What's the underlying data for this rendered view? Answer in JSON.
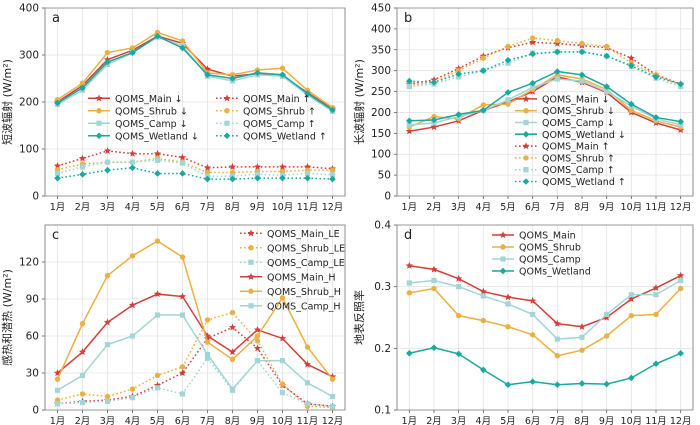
{
  "colors": {
    "main": "#d33f3a",
    "shrub": "#eab043",
    "camp": "#a2d6d6",
    "wetland": "#1aa9a0"
  },
  "months": [
    "1月",
    "2月",
    "3月",
    "4月",
    "5月",
    "6月",
    "7月",
    "8月",
    "9月",
    "10月",
    "11月",
    "12月"
  ],
  "chart_data": [
    {
      "panel": "a",
      "type": "line",
      "title": "",
      "panel_label": "a",
      "ylabel": "短波辐射 (W/m²)",
      "ylim": [
        0,
        400
      ],
      "yticks": [
        0,
        100,
        200,
        300,
        400
      ],
      "grid": true,
      "legend_placement": "center",
      "legend_columns": 2,
      "series": [
        {
          "name": "QOMS_Main ↓",
          "color": "main",
          "style": "solid",
          "marker": "star",
          "values": [
            200,
            235,
            290,
            310,
            340,
            325,
            270,
            255,
            260,
            255,
            220,
            185
          ]
        },
        {
          "name": "QOMS_Shrub ↓",
          "color": "shrub",
          "style": "solid",
          "marker": "circle",
          "values": [
            205,
            240,
            305,
            315,
            348,
            330,
            262,
            258,
            268,
            272,
            225,
            188
          ]
        },
        {
          "name": "QOMS_Camp ↓",
          "color": "camp",
          "style": "solid",
          "marker": "square",
          "values": [
            195,
            225,
            280,
            305,
            338,
            320,
            255,
            245,
            258,
            255,
            215,
            180
          ]
        },
        {
          "name": "QOMS_Wetland ↓",
          "color": "wetland",
          "style": "solid",
          "marker": "diamond",
          "values": [
            198,
            230,
            285,
            305,
            340,
            315,
            258,
            250,
            262,
            258,
            218,
            183
          ]
        },
        {
          "name": "QOMS_Main ↑",
          "color": "main",
          "style": "dotted",
          "marker": "star",
          "values": [
            64,
            80,
            96,
            90,
            90,
            82,
            60,
            62,
            62,
            62,
            62,
            58
          ]
        },
        {
          "name": "QOMS_Shrub ↑",
          "color": "shrub",
          "style": "dotted",
          "marker": "circle",
          "values": [
            56,
            68,
            72,
            72,
            80,
            72,
            50,
            50,
            52,
            52,
            55,
            55
          ]
        },
        {
          "name": "QOMS_Camp ↑",
          "color": "camp",
          "style": "dotted",
          "marker": "square",
          "values": [
            48,
            62,
            72,
            72,
            76,
            70,
            42,
            42,
            46,
            44,
            48,
            45
          ]
        },
        {
          "name": "QOMS_Wetland ↑",
          "color": "wetland",
          "style": "dotted",
          "marker": "diamond",
          "values": [
            38,
            46,
            55,
            60,
            48,
            48,
            36,
            36,
            38,
            38,
            38,
            36
          ]
        }
      ]
    },
    {
      "panel": "b",
      "type": "line",
      "title": "",
      "panel_label": "b",
      "ylabel": "长波辐射 (W/m²)",
      "ylim": [
        0,
        450
      ],
      "yticks": [
        0,
        50,
        100,
        150,
        200,
        250,
        300,
        350,
        400,
        450
      ],
      "grid": true,
      "legend_placement": "bottom-center",
      "legend_columns": 1,
      "series": [
        {
          "name": "QOMS_Main ↓",
          "color": "main",
          "style": "solid",
          "marker": "star",
          "values": [
            155,
            165,
            180,
            205,
            225,
            250,
            285,
            272,
            248,
            200,
            175,
            158
          ]
        },
        {
          "name": "QOMS_Shrub ↓",
          "color": "shrub",
          "style": "solid",
          "marker": "circle",
          "values": [
            165,
            190,
            185,
            218,
            220,
            255,
            290,
            280,
            255,
            205,
            180,
            165
          ]
        },
        {
          "name": "QOMS_Camp ↓",
          "color": "camp",
          "style": "solid",
          "marker": "square",
          "values": [
            170,
            175,
            190,
            205,
            230,
            260,
            280,
            275,
            250,
            215,
            185,
            170
          ]
        },
        {
          "name": "QOMS_Wetland ↓",
          "color": "wetland",
          "style": "solid",
          "marker": "diamond",
          "values": [
            180,
            182,
            195,
            205,
            248,
            270,
            298,
            290,
            262,
            220,
            188,
            178
          ]
        },
        {
          "name": "QOMS_Main ↑",
          "color": "main",
          "style": "dotted",
          "marker": "star",
          "values": [
            268,
            278,
            305,
            335,
            355,
            368,
            365,
            360,
            355,
            330,
            290,
            268
          ]
        },
        {
          "name": "QOMS_Shrub ↑",
          "color": "shrub",
          "style": "dotted",
          "marker": "circle",
          "values": [
            265,
            272,
            300,
            330,
            358,
            378,
            372,
            365,
            358,
            318,
            290,
            265
          ]
        },
        {
          "name": "QOMS_Camp ↑",
          "color": "camp",
          "style": "dotted",
          "marker": "square",
          "values": [
            262,
            268,
            285,
            300,
            318,
            342,
            345,
            345,
            335,
            310,
            282,
            262
          ]
        },
        {
          "name": "QOMS_Wetland ↑",
          "color": "wetland",
          "style": "dotted",
          "marker": "diamond",
          "values": [
            275,
            272,
            292,
            300,
            325,
            340,
            345,
            345,
            335,
            312,
            285,
            268
          ]
        }
      ]
    },
    {
      "panel": "c",
      "type": "line",
      "title": "",
      "panel_label": "c",
      "ylabel": "感热和潜热 (W/m²)",
      "ylim": [
        0,
        150
      ],
      "yticks": [
        0,
        30,
        60,
        90,
        120
      ],
      "grid": true,
      "legend_placement": "top-right",
      "legend_columns": 1,
      "series": [
        {
          "name": "QOMS_Main_LE",
          "color": "main",
          "style": "dotted",
          "marker": "star",
          "values": [
            5,
            7,
            8,
            11,
            20,
            30,
            58,
            67,
            50,
            20,
            5,
            3
          ]
        },
        {
          "name": "QOMS_Shrub_LE",
          "color": "shrub",
          "style": "dotted",
          "marker": "circle",
          "values": [
            8,
            13,
            11,
            17,
            28,
            35,
            73,
            79,
            56,
            21,
            3,
            2
          ]
        },
        {
          "name": "QOMS_Camp_LE",
          "color": "camp",
          "style": "dotted",
          "marker": "square",
          "values": [
            5,
            6,
            7,
            10,
            18,
            13,
            42,
            16,
            40,
            14,
            5,
            3
          ]
        },
        {
          "name": "QOMS_Main_H",
          "color": "main",
          "style": "solid",
          "marker": "star",
          "values": [
            30,
            47,
            71,
            85,
            94,
            92,
            60,
            47,
            65,
            58,
            37,
            27
          ]
        },
        {
          "name": "QOMS_Shrub_H",
          "color": "shrub",
          "style": "solid",
          "marker": "circle",
          "values": [
            25,
            70,
            109,
            125,
            137,
            124,
            55,
            41,
            60,
            91,
            51,
            25
          ]
        },
        {
          "name": "QOMS_Camp_H",
          "color": "camp",
          "style": "solid",
          "marker": "square",
          "values": [
            16,
            28,
            53,
            60,
            77,
            77,
            45,
            17,
            40,
            40,
            22,
            11
          ]
        }
      ]
    },
    {
      "panel": "d",
      "type": "line",
      "title": "",
      "panel_label": "d",
      "ylabel": "地表反照率",
      "ylim": [
        0.1,
        0.4
      ],
      "yticks": [
        0.1,
        0.2,
        0.3,
        0.4
      ],
      "grid": true,
      "legend_placement": "top-left",
      "legend_columns": 1,
      "series": [
        {
          "name": "QOMS_Main",
          "color": "main",
          "style": "solid",
          "marker": "star",
          "values": [
            0.334,
            0.328,
            0.313,
            0.292,
            0.283,
            0.277,
            0.24,
            0.235,
            0.25,
            0.28,
            0.298,
            0.318
          ]
        },
        {
          "name": "QOMS_Shrub",
          "color": "shrub",
          "style": "solid",
          "marker": "circle",
          "values": [
            0.29,
            0.297,
            0.253,
            0.245,
            0.235,
            0.222,
            0.188,
            0.197,
            0.22,
            0.253,
            0.255,
            0.297
          ]
        },
        {
          "name": "QOMS_Camp",
          "color": "camp",
          "style": "solid",
          "marker": "square",
          "values": [
            0.306,
            0.31,
            0.3,
            0.285,
            0.272,
            0.255,
            0.215,
            0.218,
            0.255,
            0.287,
            0.287,
            0.31
          ]
        },
        {
          "name": "QOMs_Wetland",
          "color": "wetland",
          "style": "solid",
          "marker": "diamond",
          "values": [
            0.192,
            0.201,
            0.191,
            0.165,
            0.141,
            0.146,
            0.141,
            0.143,
            0.142,
            0.152,
            0.175,
            0.192
          ]
        }
      ]
    }
  ]
}
